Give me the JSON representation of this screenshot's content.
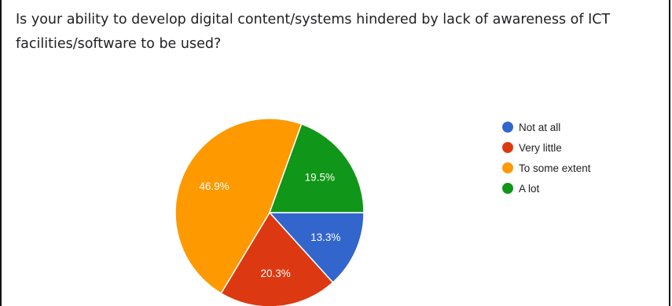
{
  "question": "Is your ability to develop digital content/systems hindered by lack of awareness of ICT facilities/software to be used?",
  "chart_data": {
    "type": "pie",
    "labels": [
      "Not at all",
      "Very little",
      "To some extent",
      "A lot"
    ],
    "values": [
      13.3,
      20.3,
      46.9,
      19.5
    ],
    "value_labels": [
      "13.3%",
      "20.3%",
      "46.9%",
      "19.5%"
    ],
    "colors": [
      "#3366cc",
      "#dc3912",
      "#ff9900",
      "#109618"
    ],
    "start_direction": "3 o'clock",
    "direction": "clockwise",
    "legend_position": "right"
  }
}
